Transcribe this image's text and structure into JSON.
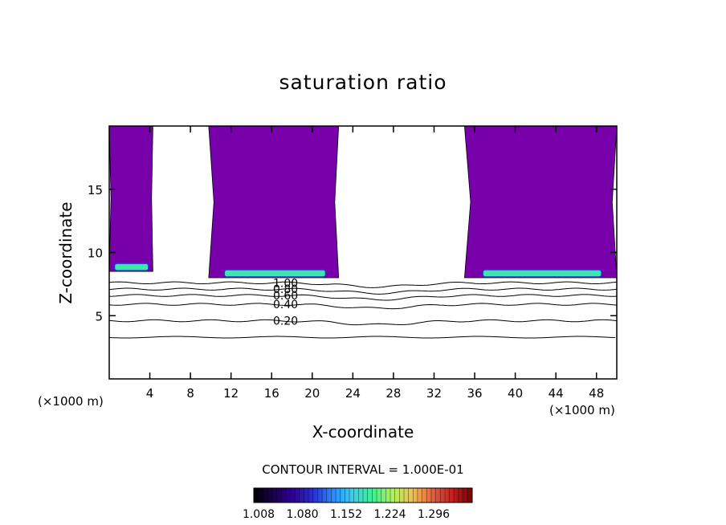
{
  "chart_data": {
    "type": "contour",
    "title": "saturation ratio",
    "xlabel": "X-coordinate",
    "ylabel": "Z-coordinate",
    "x_unit": "(×1000 m)",
    "y_unit": "(×1000 m)",
    "xlim": [
      0,
      50
    ],
    "ylim": [
      0,
      20
    ],
    "x_ticks": [
      4,
      8,
      12,
      16,
      20,
      24,
      28,
      32,
      36,
      40,
      44,
      48
    ],
    "y_ticks": [
      5,
      10,
      15
    ],
    "contour_interval_text": "CONTOUR INTERVAL = 1.000E-01",
    "contour_levels": [
      {
        "label": "0.20",
        "z": 4.6
      },
      {
        "label": "0.40",
        "z": 5.9
      },
      {
        "label": "0.60",
        "z": 6.6
      },
      {
        "label": "0.80",
        "z": 7.1
      },
      {
        "label": "1.00",
        "z": 7.6
      }
    ],
    "shaded_regions": [
      {
        "x": [
          0.0,
          4.3
        ],
        "z_top": 20.0,
        "z_bottom": 8.5
      },
      {
        "x": [
          9.8,
          22.6
        ],
        "z_top": 20.0,
        "z_bottom": 8.0
      },
      {
        "x": [
          35.0,
          50.0
        ],
        "z_top": 20.0,
        "z_bottom": 8.0
      }
    ],
    "colorbar": {
      "min": 1.008,
      "max": 1.296,
      "tick_labels": [
        "1.008",
        "1.080",
        "1.152",
        "1.224",
        "1.296"
      ],
      "colors": [
        "#000000",
        "#1a0050",
        "#30009a",
        "#2a30d0",
        "#2a8cff",
        "#3cd0e8",
        "#40f090",
        "#b0f060",
        "#f0c050",
        "#e06040",
        "#c02020",
        "#7a0000"
      ]
    },
    "colors": {
      "base_fill": "#7700aa",
      "low_band": "#3ce8a8",
      "edge": "#2a30d0",
      "contour_line": "#000000"
    },
    "grid": false
  }
}
